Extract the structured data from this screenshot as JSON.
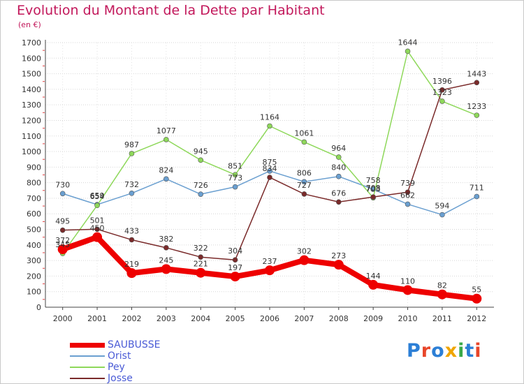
{
  "title": "Evolution du Montant de la Dette par Habitant",
  "subtitle": "(en €)",
  "logo": {
    "text": "Proxiti",
    "colors": [
      "#2c7fd6",
      "#e8462a",
      "#2c7fd6",
      "#f0a500",
      "#3aa94a",
      "#2c7fd6",
      "#e8462a"
    ]
  },
  "chart_data": {
    "type": "line",
    "title": "Evolution du Montant de la Dette par Habitant",
    "subtitle": "(en €)",
    "x": [
      "2000",
      "2001",
      "2002",
      "2003",
      "2004",
      "2005",
      "2006",
      "2007",
      "2008",
      "2009",
      "2010",
      "2011",
      "2012"
    ],
    "ylim": [
      0,
      1700
    ],
    "yticks": [
      0,
      100,
      200,
      300,
      400,
      500,
      600,
      700,
      800,
      900,
      1000,
      1100,
      1200,
      1300,
      1400,
      1500,
      1600,
      1700
    ],
    "grid": "horizontal",
    "legend_position": "bottom-left",
    "series": [
      {
        "name": "SAUBUSSE",
        "color": "#ee0000",
        "values": [
          372,
          450,
          219,
          245,
          221,
          197,
          237,
          302,
          273,
          144,
          110,
          82,
          55
        ]
      },
      {
        "name": "Orist",
        "color": "#6a9fd0",
        "values": [
          730,
          659,
          732,
          824,
          726,
          773,
          875,
          806,
          840,
          758,
          662,
          594,
          711
        ]
      },
      {
        "name": "Pey",
        "color": "#8ed85a",
        "values": [
          345,
          654,
          987,
          1077,
          945,
          851,
          1164,
          1061,
          964,
          703,
          1644,
          1323,
          1233
        ]
      },
      {
        "name": "Josse",
        "color": "#7a2a2a",
        "values": [
          495,
          501,
          433,
          382,
          322,
          304,
          834,
          727,
          676,
          708,
          739,
          1396,
          1443
        ]
      }
    ]
  }
}
